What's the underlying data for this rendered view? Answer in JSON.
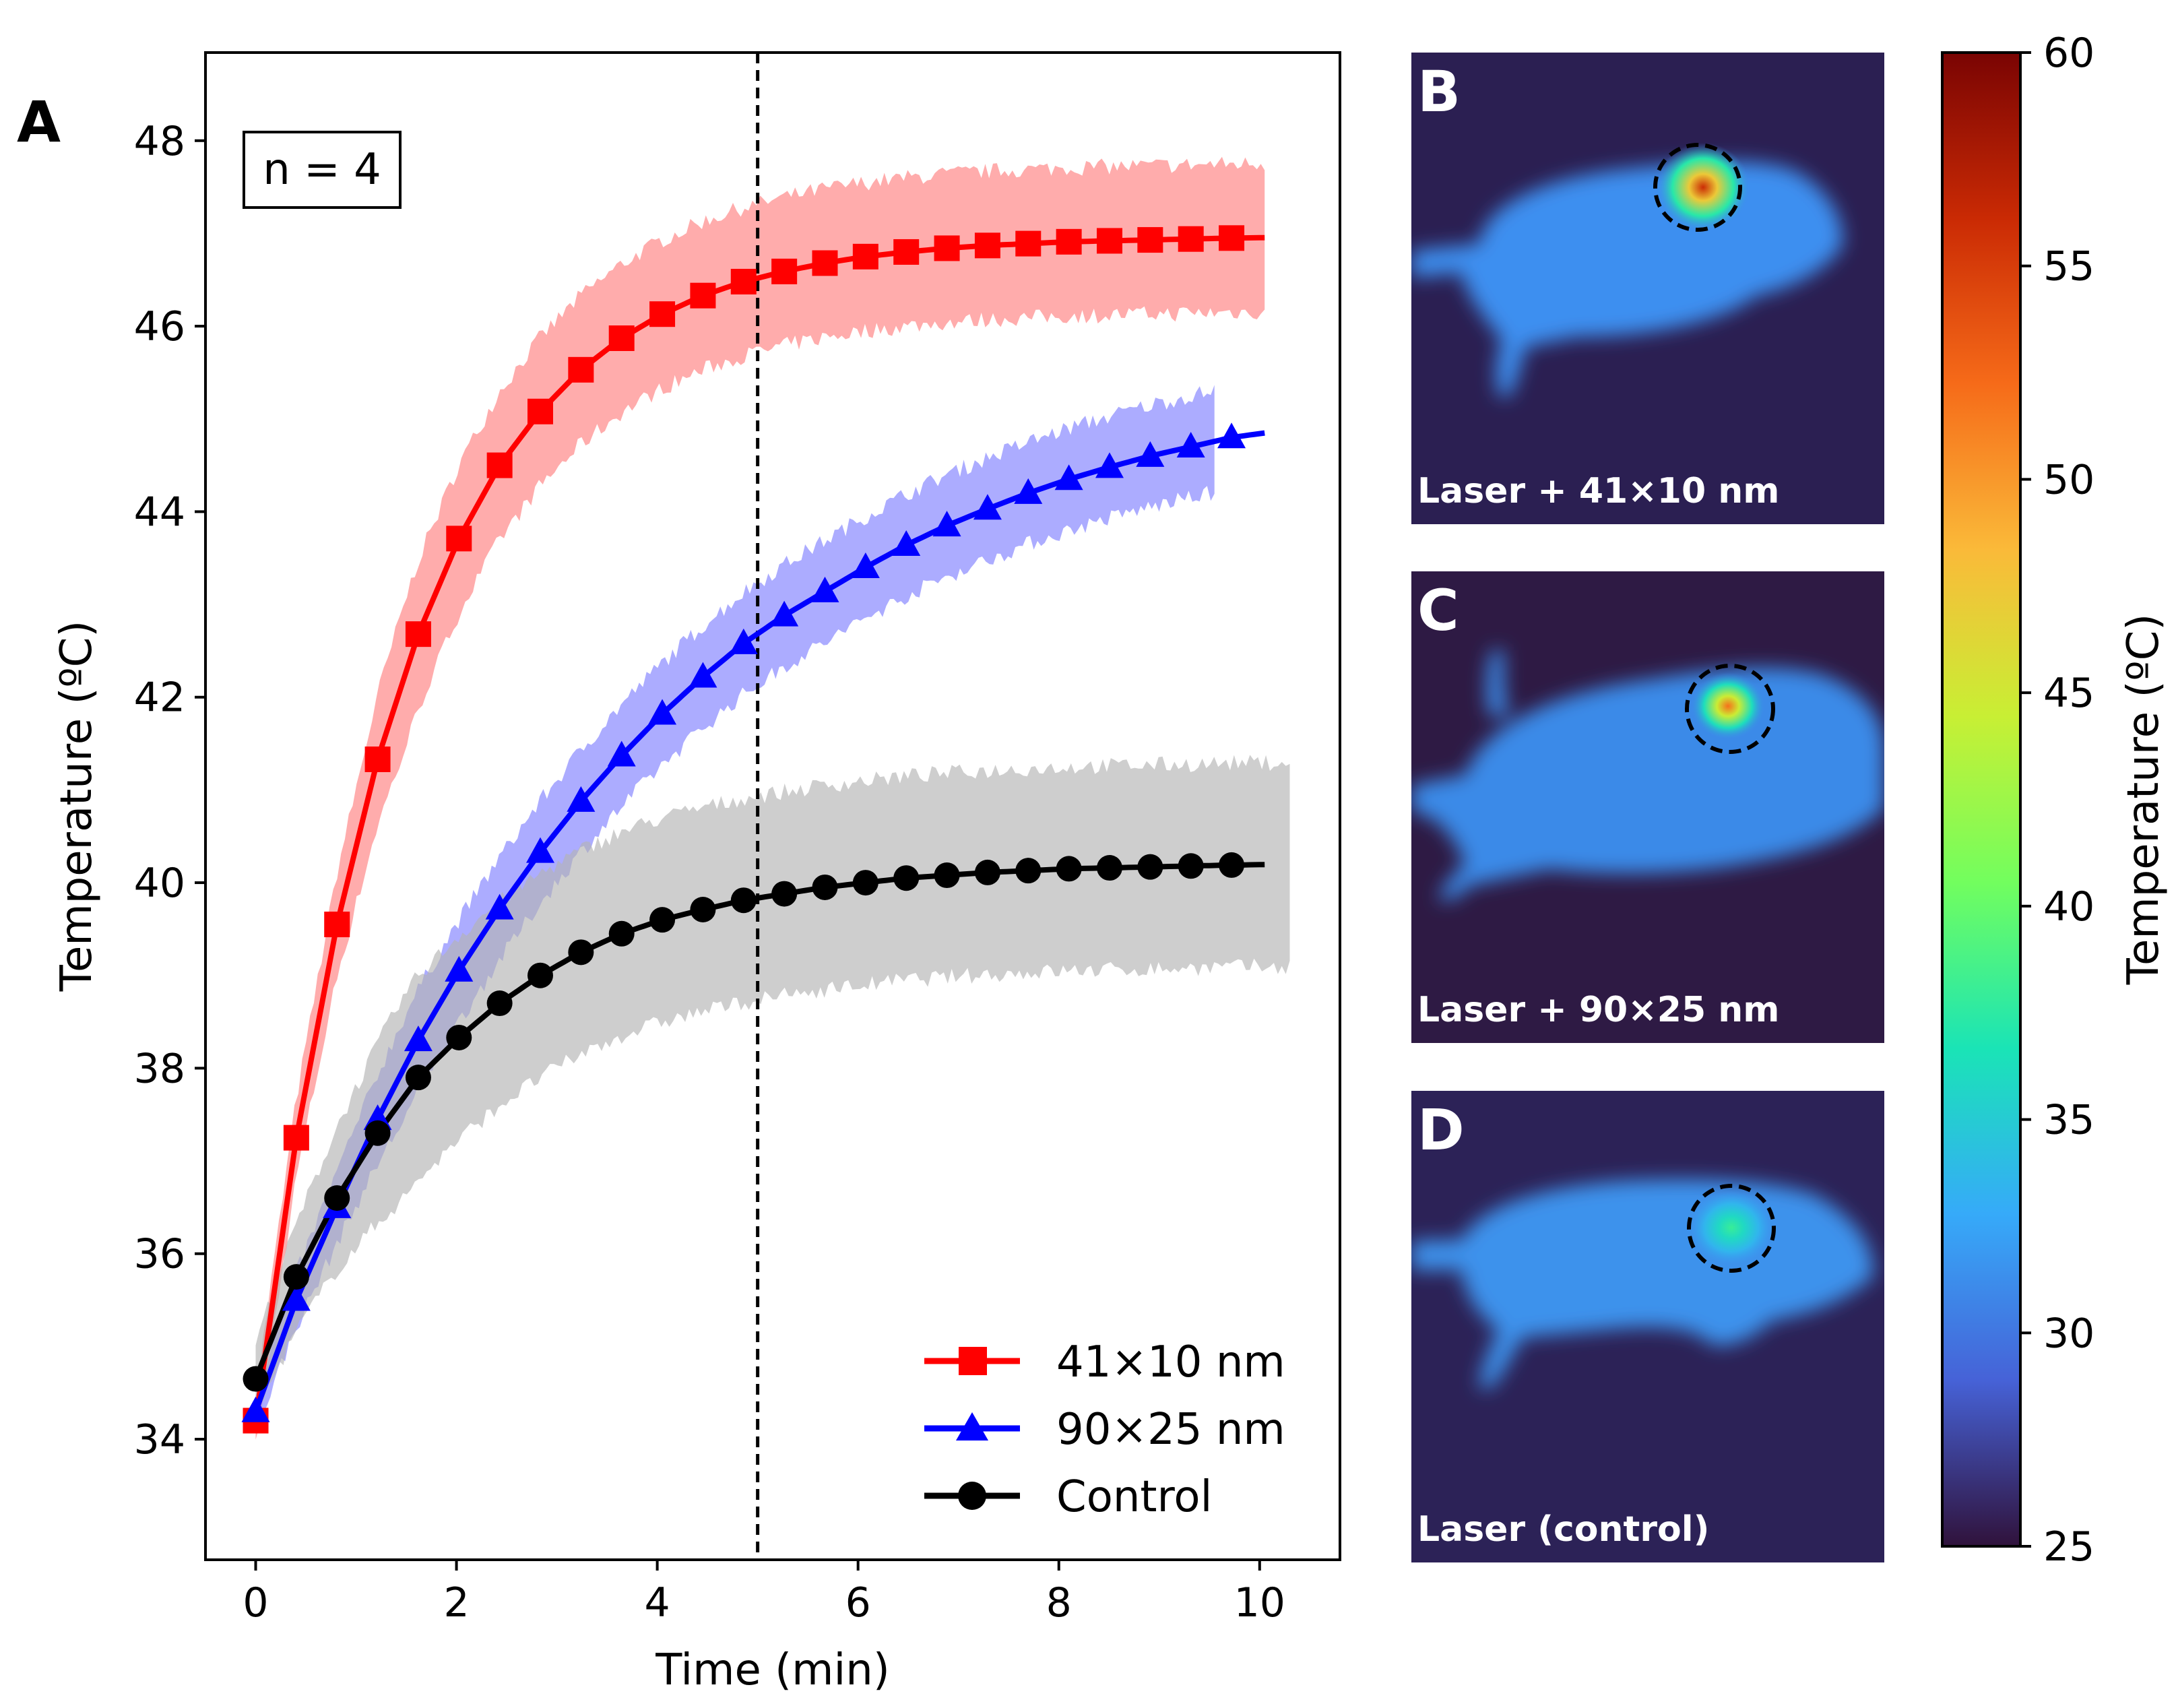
{
  "chart_data": [
    {
      "panel": "A",
      "type": "line",
      "xlabel": "Time (min)",
      "ylabel": "Temperature (ºC)",
      "xlim": [
        -0.5,
        10.8
      ],
      "ylim": [
        32.7,
        48.95
      ],
      "xticks": [
        0,
        2,
        4,
        6,
        8,
        10
      ],
      "yticks": [
        34,
        36,
        38,
        40,
        42,
        44,
        46,
        48
      ],
      "annotation": "n = 4",
      "vline_x": 5,
      "legend": {
        "location": "lower-right",
        "entries": [
          "41×10 nm",
          "90×25 nm",
          "Control"
        ]
      },
      "series": [
        {
          "name": "41×10 nm",
          "color": "#ff0000",
          "band_color": "#ff8080",
          "marker": "square",
          "x": [
            0,
            0.405,
            0.81,
            1.215,
            1.62,
            2.025,
            2.43,
            2.835,
            3.24,
            3.645,
            4.05,
            4.455,
            4.86,
            5.265,
            5.67,
            6.075,
            6.48,
            6.885,
            7.29,
            7.695,
            8.1,
            8.505,
            8.91,
            9.315,
            9.72
          ],
          "values": [
            34.2,
            37.25,
            39.55,
            41.33,
            42.68,
            43.71,
            44.5,
            45.08,
            45.53,
            45.87,
            46.13,
            46.33,
            46.48,
            46.59,
            46.68,
            46.75,
            46.8,
            46.84,
            46.87,
            46.89,
            46.91,
            46.92,
            46.93,
            46.94,
            46.95
          ],
          "line_end_x": 10.05,
          "band_end_x": 10.05,
          "band_half_width": 0.8
        },
        {
          "name": "90×25 nm",
          "color": "#0000ff",
          "band_color": "#8080ff",
          "marker": "triangle",
          "x": [
            0,
            0.405,
            0.81,
            1.215,
            1.62,
            2.025,
            2.43,
            2.835,
            3.24,
            3.645,
            4.05,
            4.455,
            4.86,
            5.265,
            5.67,
            6.075,
            6.48,
            6.885,
            7.29,
            7.695,
            8.1,
            8.505,
            8.91,
            9.315,
            9.72
          ],
          "values": [
            34.3,
            35.5,
            36.5,
            37.45,
            38.3,
            39.05,
            39.72,
            40.33,
            40.88,
            41.37,
            41.82,
            42.22,
            42.58,
            42.88,
            43.14,
            43.4,
            43.64,
            43.85,
            44.03,
            44.2,
            44.35,
            44.48,
            44.6,
            44.7,
            44.8
          ],
          "line_end_x": 10.05,
          "band_end_x": 9.55,
          "band_half_width": 0.55
        },
        {
          "name": "Control",
          "color": "#000000",
          "band_color": "#b3b3b3",
          "marker": "circle",
          "x": [
            0,
            0.405,
            0.81,
            1.215,
            1.62,
            2.025,
            2.43,
            2.835,
            3.24,
            3.645,
            4.05,
            4.455,
            4.86,
            5.265,
            5.67,
            6.075,
            6.48,
            6.885,
            7.29,
            7.695,
            8.1,
            8.505,
            8.91,
            9.315,
            9.72
          ],
          "values": [
            34.65,
            35.75,
            36.6,
            37.3,
            37.9,
            38.33,
            38.7,
            39.0,
            39.25,
            39.45,
            39.6,
            39.71,
            39.81,
            39.88,
            39.95,
            40.0,
            40.05,
            40.08,
            40.11,
            40.13,
            40.15,
            40.16,
            40.17,
            40.18,
            40.19
          ],
          "line_end_x": 10.05,
          "band_end_x": 10.3,
          "band_half_width": 1.1
        }
      ]
    },
    {
      "panel": "colorbar",
      "type": "heatmap",
      "ylabel": "Temperature (ºC)",
      "range": [
        25,
        60
      ],
      "ticks": [
        25,
        30,
        35,
        40,
        45,
        50,
        55,
        60
      ],
      "colormap_stops": [
        "#30123b",
        "#4662d7",
        "#36aaf9",
        "#1ae4b6",
        "#72fe5e",
        "#c8ef34",
        "#faba39",
        "#f66b19",
        "#ca2a04",
        "#7a0403"
      ]
    }
  ],
  "panels": {
    "a": {
      "letter": "A"
    },
    "b": {
      "letter": "B",
      "caption": "Laser + 41×10 nm",
      "hotspot_temp": 56,
      "body_temp": 31
    },
    "c": {
      "letter": "C",
      "caption": "Laser + 90×25 nm",
      "hotspot_temp": 52,
      "body_temp": 31
    },
    "d": {
      "letter": "D",
      "caption": "Laser (control)",
      "hotspot_temp": 38,
      "body_temp": 32
    }
  }
}
